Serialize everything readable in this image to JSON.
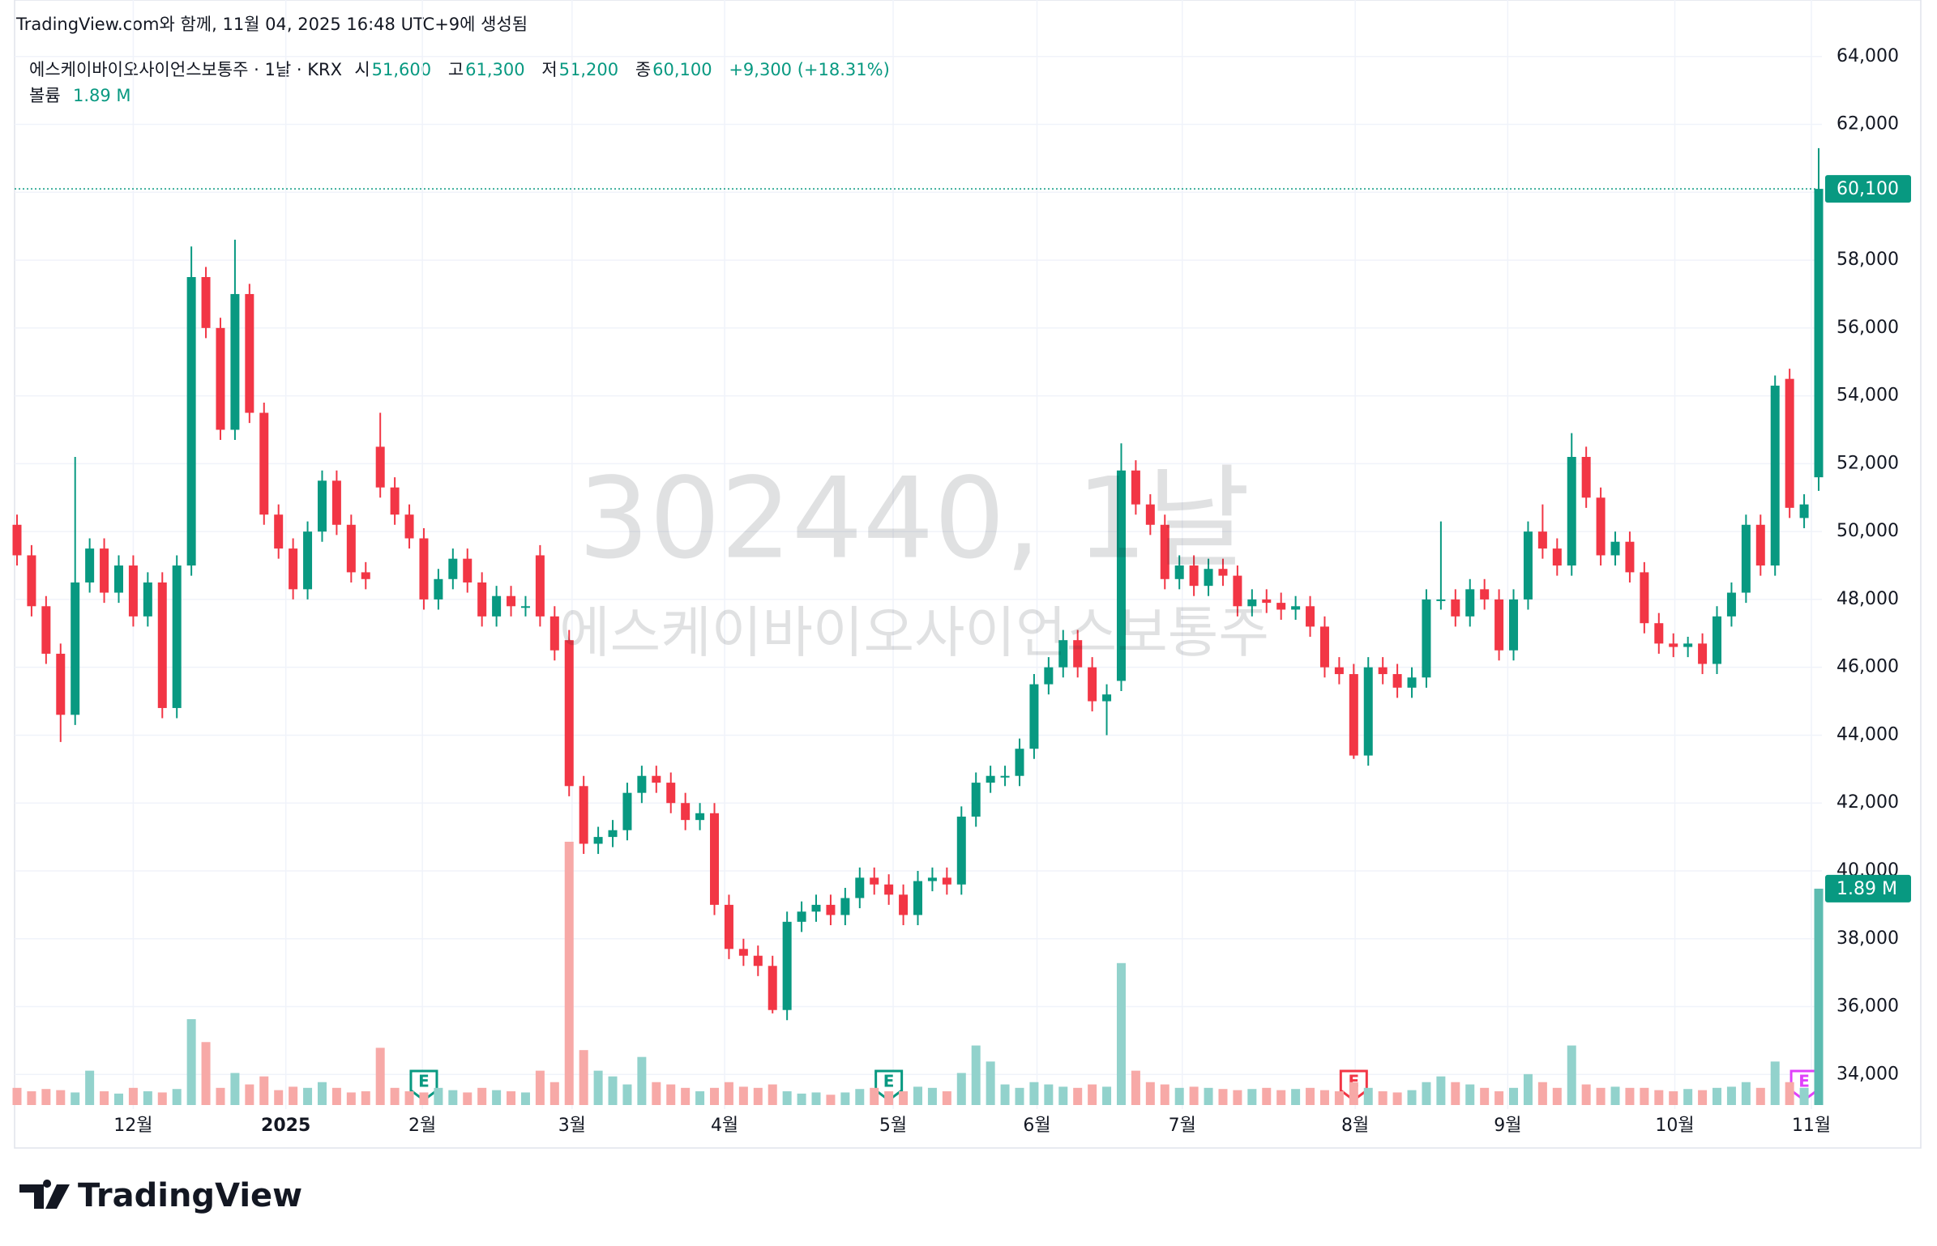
{
  "header": {
    "credit": "TradingView.com와 함께, 11월 04, 2025 16:48 UTC+9에 생성됨",
    "symbol": "에스케이바이오사이언스보통주 · 1날 · KRX",
    "open_label": "시",
    "open": "51,600",
    "high_label": "고",
    "high": "61,300",
    "low_label": "저",
    "low": "51,200",
    "close_label": "종",
    "close": "60,100",
    "change": "+9,300 (+18.31%)",
    "volume_label": "볼륨",
    "volume": "1.89 M"
  },
  "watermark": {
    "line1": "302440, 1날",
    "line2": "에스케이바이오사이언스보통주"
  },
  "events": [
    {
      "label": "E",
      "bar": 28,
      "color": "#089981"
    },
    {
      "label": "E",
      "bar": 60,
      "color": "#089981"
    },
    {
      "label": "E",
      "bar": 92,
      "color": "#f23645"
    },
    {
      "label": "E",
      "bar": 123,
      "color": "#e040fb"
    }
  ],
  "footer": {
    "logo": "TradingView"
  },
  "chart_data": {
    "type": "candlestick",
    "up_color": "#089981",
    "down_color": "#f23645",
    "up_volume_color": "#92d2cc",
    "down_volume_color": "#f7a9a7",
    "grid": true,
    "ylim": [
      33100,
      64400
    ],
    "yticks": [
      {
        "value": 34000,
        "label": "34,000"
      },
      {
        "value": 36000,
        "label": "36,000"
      },
      {
        "value": 38000,
        "label": "38,000"
      },
      {
        "value": 40000,
        "label": "40,000"
      },
      {
        "value": 42000,
        "label": "42,000"
      },
      {
        "value": 44000,
        "label": "44,000"
      },
      {
        "value": 46000,
        "label": "46,000"
      },
      {
        "value": 48000,
        "label": "48,000"
      },
      {
        "value": 50000,
        "label": "50,000"
      },
      {
        "value": 52000,
        "label": "52,000"
      },
      {
        "value": 54000,
        "label": "54,000"
      },
      {
        "value": 56000,
        "label": "56,000"
      },
      {
        "value": 58000,
        "label": "58,000"
      },
      {
        "value": 60000,
        "label": "60,000"
      },
      {
        "value": 62000,
        "label": "62,000"
      },
      {
        "value": 64000,
        "label": "64,000"
      }
    ],
    "xticks": [
      {
        "value": 8,
        "label": "12월"
      },
      {
        "value": 18.5,
        "label": "2025"
      },
      {
        "value": 27.9,
        "label": "2월"
      },
      {
        "value": 38.2,
        "label": "3월"
      },
      {
        "value": 48.7,
        "label": "4월"
      },
      {
        "value": 60.3,
        "label": "5월"
      },
      {
        "value": 70.2,
        "label": "6월"
      },
      {
        "value": 80.2,
        "label": "7월"
      },
      {
        "value": 92.1,
        "label": "8월"
      },
      {
        "value": 102.6,
        "label": "9월"
      },
      {
        "value": 114.1,
        "label": "10월"
      },
      {
        "value": 123.5,
        "label": "11월"
      }
    ],
    "open": [
      50200,
      49300,
      47800,
      46400,
      44600,
      48500,
      49500,
      48200,
      49000,
      47500,
      48500,
      44800,
      49000,
      57500,
      56000,
      53000,
      57000,
      53500,
      50500,
      49500,
      48300,
      50000,
      51500,
      50200,
      48800,
      52500,
      51300,
      50500,
      49800,
      48000,
      48600,
      49200,
      48500,
      47500,
      48100,
      47800,
      49300,
      47500,
      46800,
      42500,
      40800,
      41000,
      41200,
      42300,
      42800,
      42600,
      42000,
      41500,
      41700,
      39000,
      37700,
      37500,
      37200,
      35900,
      38500,
      38800,
      39000,
      38700,
      39200,
      39800,
      39600,
      39300,
      38700,
      39700,
      39800,
      39600,
      41600,
      42600,
      42800,
      42800,
      43600,
      45500,
      46000,
      46800,
      46000,
      45000,
      45600,
      51800,
      50800,
      50200,
      48600,
      49000,
      48400,
      48900,
      48700,
      47800,
      48000,
      47900,
      47700,
      47800,
      47200,
      46000,
      45800,
      43400,
      46000,
      45800,
      45400,
      45700,
      48000,
      48000,
      47500,
      48300,
      48000,
      46500,
      48000,
      50000,
      49500,
      49000,
      52200,
      51000,
      49300,
      49700,
      48800,
      47300,
      46700,
      46600,
      46700,
      46100,
      47500,
      48200,
      50200,
      49000,
      54500,
      50400,
      51600
    ],
    "high": [
      50500,
      49600,
      48100,
      46700,
      52200,
      49800,
      49800,
      49300,
      49300,
      48800,
      48800,
      49300,
      58400,
      57800,
      56300,
      58600,
      57300,
      53800,
      50800,
      49800,
      50300,
      51800,
      51800,
      50500,
      49100,
      53500,
      51600,
      50800,
      50100,
      48900,
      49500,
      49500,
      48800,
      48400,
      48400,
      48100,
      49600,
      47800,
      47100,
      42800,
      41300,
      41500,
      42600,
      43100,
      43100,
      42900,
      42300,
      42000,
      42000,
      39300,
      38000,
      37800,
      37500,
      38800,
      39100,
      39300,
      39300,
      39500,
      40100,
      40100,
      39900,
      39600,
      40000,
      40100,
      40100,
      41900,
      42900,
      43100,
      43100,
      43900,
      45800,
      46300,
      47100,
      47100,
      46300,
      45500,
      52600,
      52100,
      51100,
      50500,
      49300,
      49300,
      49200,
      49200,
      49000,
      48300,
      48300,
      48200,
      48100,
      48100,
      47500,
      46300,
      46100,
      46300,
      46300,
      46100,
      46000,
      48300,
      50300,
      48300,
      48600,
      48600,
      48300,
      48300,
      50300,
      50800,
      49800,
      52900,
      52500,
      51300,
      50000,
      50000,
      49100,
      47600,
      47000,
      46900,
      47000,
      47800,
      48500,
      50500,
      50500,
      54600,
      54800,
      51100,
      61300
    ],
    "low": [
      49000,
      47500,
      46100,
      43800,
      44300,
      48200,
      47900,
      47900,
      47200,
      47200,
      44500,
      44500,
      48700,
      55700,
      52700,
      52700,
      53200,
      50200,
      49200,
      48000,
      48000,
      49700,
      49900,
      48500,
      48300,
      51000,
      50200,
      49500,
      47700,
      47700,
      48300,
      48200,
      47200,
      47200,
      47500,
      47500,
      47200,
      46200,
      42200,
      40500,
      40500,
      40700,
      40900,
      42000,
      42300,
      41700,
      41200,
      41200,
      38700,
      37400,
      37200,
      36900,
      35800,
      35600,
      38200,
      38500,
      38400,
      38400,
      38900,
      39300,
      39000,
      38400,
      38400,
      39400,
      39300,
      39300,
      41300,
      42300,
      42500,
      42500,
      43300,
      45200,
      45700,
      45700,
      44700,
      44000,
      45300,
      50500,
      49900,
      48300,
      48300,
      48100,
      48100,
      48400,
      47500,
      47500,
      47600,
      47400,
      47400,
      46900,
      45700,
      45500,
      43300,
      43100,
      45500,
      45100,
      45100,
      45400,
      47700,
      47200,
      47200,
      47700,
      46200,
      46200,
      47700,
      49200,
      48700,
      48700,
      50700,
      49000,
      49000,
      48500,
      47000,
      46400,
      46300,
      46300,
      45800,
      45800,
      47200,
      47900,
      48700,
      48700,
      50400,
      50100,
      51200
    ],
    "close": [
      49300,
      47800,
      46400,
      44600,
      48500,
      49500,
      48200,
      49000,
      47500,
      48500,
      44800,
      49000,
      57500,
      56000,
      53000,
      57000,
      53500,
      50500,
      49500,
      48300,
      50000,
      51500,
      50200,
      48800,
      48600,
      51300,
      50500,
      49800,
      48000,
      48600,
      49200,
      48500,
      47500,
      48100,
      47800,
      47800,
      47500,
      46500,
      42500,
      40800,
      41000,
      41200,
      42300,
      42800,
      42600,
      42000,
      41500,
      41700,
      39000,
      37700,
      37500,
      37200,
      35900,
      38500,
      38800,
      39000,
      38700,
      39200,
      39800,
      39600,
      39300,
      38700,
      39700,
      39800,
      39600,
      41600,
      42600,
      42800,
      42800,
      43600,
      45500,
      46000,
      46800,
      46000,
      45000,
      45200,
      51800,
      50800,
      50200,
      48600,
      49000,
      48400,
      48900,
      48700,
      47800,
      48000,
      47900,
      47700,
      47800,
      47200,
      46000,
      45800,
      43400,
      46000,
      45800,
      45400,
      45700,
      48000,
      48000,
      47500,
      48300,
      48000,
      46500,
      48000,
      50000,
      49500,
      49000,
      52200,
      51000,
      49300,
      49700,
      48800,
      47300,
      46700,
      46600,
      46700,
      46100,
      47500,
      48200,
      50200,
      49000,
      54300,
      50700,
      50800,
      60100
    ],
    "volume": [
      150000,
      120000,
      140000,
      130000,
      110000,
      300000,
      120000,
      100000,
      150000,
      120000,
      110000,
      140000,
      750000,
      550000,
      150000,
      280000,
      180000,
      250000,
      130000,
      160000,
      150000,
      200000,
      150000,
      110000,
      120000,
      500000,
      150000,
      120000,
      110000,
      150000,
      130000,
      110000,
      150000,
      130000,
      120000,
      110000,
      300000,
      200000,
      2300000,
      480000,
      300000,
      250000,
      180000,
      420000,
      200000,
      180000,
      150000,
      120000,
      150000,
      200000,
      160000,
      150000,
      180000,
      120000,
      100000,
      110000,
      90000,
      110000,
      140000,
      150000,
      120000,
      120000,
      160000,
      150000,
      120000,
      280000,
      520000,
      380000,
      180000,
      150000,
      200000,
      180000,
      160000,
      150000,
      180000,
      160000,
      1240000,
      300000,
      200000,
      180000,
      150000,
      160000,
      150000,
      140000,
      130000,
      140000,
      150000,
      130000,
      140000,
      150000,
      130000,
      120000,
      200000,
      150000,
      120000,
      110000,
      130000,
      200000,
      250000,
      200000,
      180000,
      150000,
      120000,
      150000,
      270000,
      200000,
      150000,
      520000,
      180000,
      150000,
      160000,
      150000,
      150000,
      130000,
      120000,
      140000,
      130000,
      150000,
      160000,
      200000,
      150000,
      380000,
      200000,
      150000,
      1890000
    ]
  }
}
